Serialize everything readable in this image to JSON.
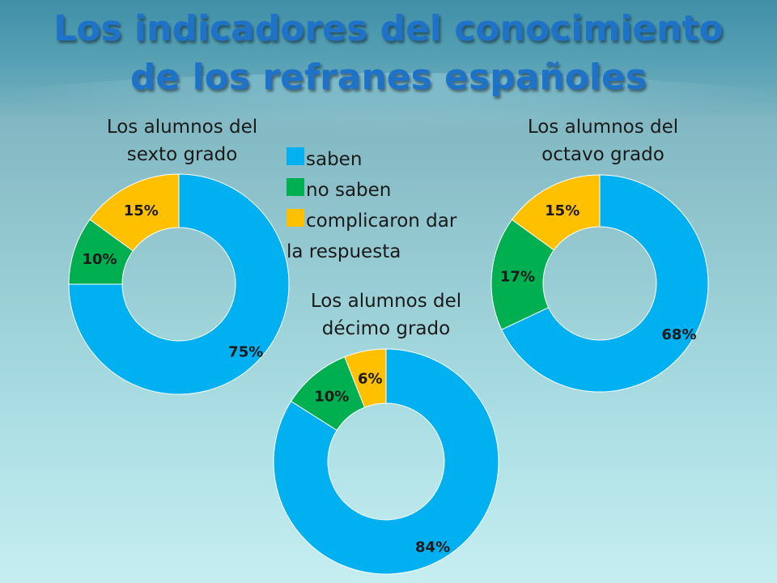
{
  "slide": {
    "title_line1": "Los indicadores del conocimiento",
    "title_line2": "de los refranes españoles"
  },
  "legend": {
    "items": [
      {
        "label": "saben",
        "color": "#00b0f0"
      },
      {
        "label": "no saben",
        "color": "#00b050"
      },
      {
        "label": "complicaron dar",
        "color": "#ffc000"
      }
    ],
    "wrap_text": "la respuesta"
  },
  "chart_data": [
    {
      "type": "pie",
      "variant": "doughnut",
      "title_line1": "Los alumnos del",
      "title_line2": "sexto grado",
      "categories": [
        "saben",
        "no saben",
        "complicaron dar la respuesta"
      ],
      "values": [
        75,
        10,
        15
      ],
      "labels": [
        "75%",
        "10%",
        "15%"
      ],
      "colors": [
        "#00b0f0",
        "#00b050",
        "#ffc000"
      ]
    },
    {
      "type": "pie",
      "variant": "doughnut",
      "title_line1": "Los alumnos del",
      "title_line2": "octavo grado",
      "categories": [
        "saben",
        "no saben",
        "complicaron dar la respuesta"
      ],
      "values": [
        68,
        17,
        15
      ],
      "labels": [
        "68%",
        "17%",
        "15%"
      ],
      "colors": [
        "#00b0f0",
        "#00b050",
        "#ffc000"
      ]
    },
    {
      "type": "pie",
      "variant": "doughnut",
      "title_line1": "Los alumnos del",
      "title_line2": "décimo grado",
      "categories": [
        "saben",
        "no saben",
        "complicaron dar la respuesta"
      ],
      "values": [
        84,
        10,
        6
      ],
      "labels": [
        "84%",
        "10%",
        "6%"
      ],
      "colors": [
        "#00b0f0",
        "#00b050",
        "#ffc000"
      ]
    }
  ]
}
